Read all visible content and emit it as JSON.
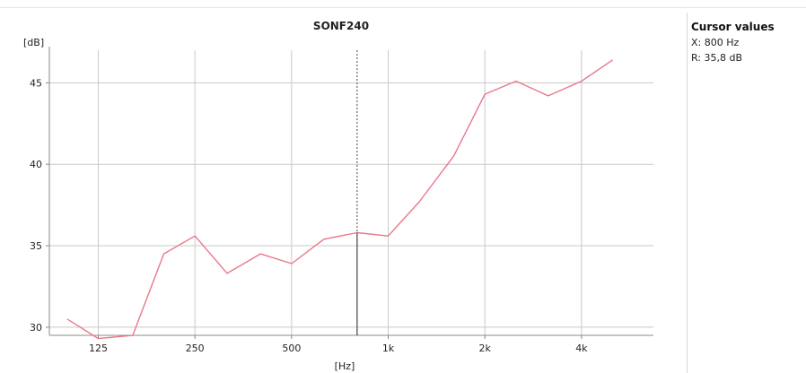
{
  "colors": {
    "series": "#e8788a",
    "cursor": "#444444",
    "grid": "#c9c9c9",
    "axis": "#888888",
    "text": "#222222"
  },
  "cursor_panel": {
    "title": "Cursor values",
    "x_line": "X: 800 Hz",
    "r_line": "R: 35,8 dB"
  },
  "chart_data": {
    "type": "line",
    "title": "SONF240",
    "xlabel": "[Hz]",
    "ylabel": "[dB]",
    "x_scale": "log",
    "xlim": [
      88,
      6700
    ],
    "ylim": [
      29.5,
      47.0
    ],
    "x_ticks": [
      125,
      250,
      500,
      1000,
      2000,
      4000
    ],
    "x_tick_labels": [
      "125",
      "250",
      "500",
      "1k",
      "2k",
      "4k"
    ],
    "y_ticks": [
      30,
      35,
      40,
      45
    ],
    "y_tick_labels": [
      "30",
      "35",
      "40",
      "45"
    ],
    "grid": true,
    "cursor_x": 800,
    "series": [
      {
        "x": [
          100,
          125,
          160,
          200,
          250,
          315,
          400,
          500,
          630,
          800,
          1000,
          1250,
          1600,
          2000,
          2500,
          3150,
          4000,
          5000
        ],
        "values": [
          30.5,
          29.3,
          29.5,
          34.5,
          35.6,
          33.3,
          34.5,
          33.9,
          35.4,
          35.8,
          35.6,
          37.7,
          40.5,
          44.3,
          45.1,
          44.2,
          45.1,
          46.4
        ]
      }
    ]
  }
}
